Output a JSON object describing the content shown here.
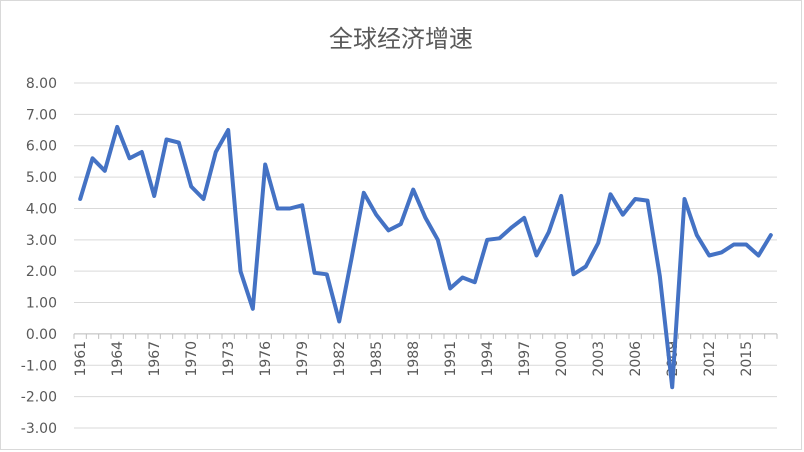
{
  "chart_data": {
    "type": "line",
    "title": "全球经济增速",
    "xlabel": "",
    "ylabel": "",
    "ylim": [
      -3,
      8
    ],
    "y_ticks": [
      "8.00",
      "7.00",
      "6.00",
      "5.00",
      "4.00",
      "3.00",
      "2.00",
      "1.00",
      "0.00",
      "-1.00",
      "-2.00",
      "-3.00"
    ],
    "y_tick_values": [
      8,
      7,
      6,
      5,
      4,
      3,
      2,
      1,
      0,
      -1,
      -2,
      -3
    ],
    "x_tick_labels": [
      "1961",
      "1964",
      "1967",
      "1970",
      "1973",
      "1976",
      "1979",
      "1982",
      "1985",
      "1988",
      "1991",
      "1994",
      "1997",
      "2000",
      "2003",
      "2006",
      "2009",
      "2012",
      "2015"
    ],
    "grid": true,
    "legend": "none",
    "line_color": "#4472C4",
    "x": [
      1961,
      1962,
      1963,
      1964,
      1965,
      1966,
      1967,
      1968,
      1969,
      1970,
      1971,
      1972,
      1973,
      1974,
      1975,
      1976,
      1977,
      1978,
      1979,
      1980,
      1981,
      1982,
      1983,
      1984,
      1985,
      1986,
      1987,
      1988,
      1989,
      1990,
      1991,
      1992,
      1993,
      1994,
      1995,
      1996,
      1997,
      1998,
      1999,
      2000,
      2001,
      2002,
      2003,
      2004,
      2005,
      2006,
      2007,
      2008,
      2009,
      2010,
      2011,
      2012,
      2013,
      2014,
      2015,
      2016,
      2017
    ],
    "series": [
      {
        "values": [
          4.3,
          5.6,
          5.2,
          6.6,
          5.6,
          5.8,
          4.4,
          6.2,
          6.1,
          4.7,
          4.3,
          5.8,
          6.5,
          2.0,
          0.8,
          5.4,
          4.0,
          4.0,
          4.1,
          1.95,
          1.9,
          0.4,
          2.4,
          4.5,
          3.8,
          3.3,
          3.5,
          4.6,
          3.7,
          3.0,
          1.45,
          1.8,
          1.65,
          3.0,
          3.05,
          3.4,
          3.7,
          2.5,
          3.25,
          4.4,
          1.9,
          2.15,
          2.9,
          4.45,
          3.8,
          4.3,
          4.25,
          1.85,
          -1.7,
          4.3,
          3.15,
          2.5,
          2.6,
          2.85,
          2.85,
          2.5,
          3.15
        ]
      }
    ]
  }
}
